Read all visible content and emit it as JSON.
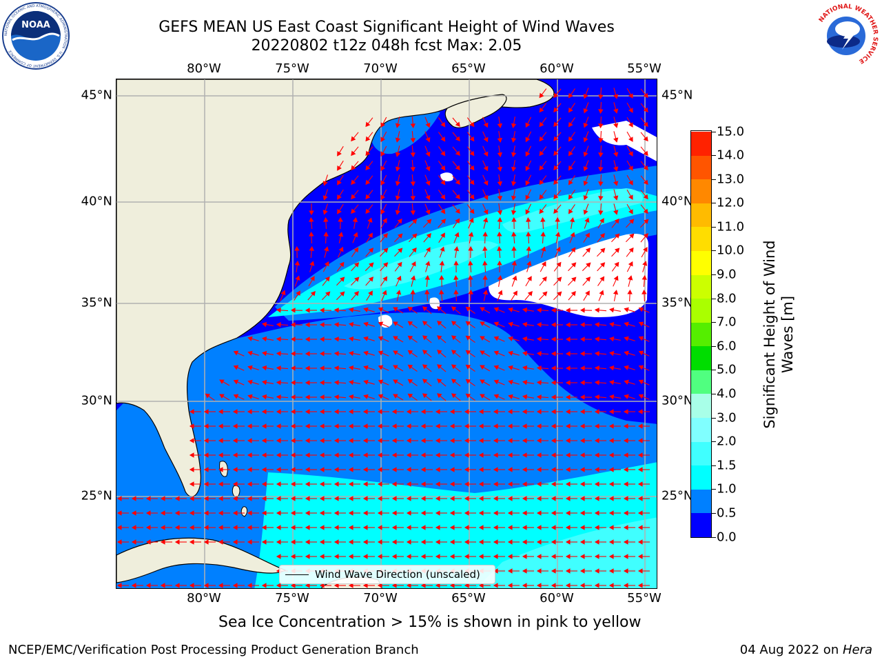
{
  "title": {
    "line1": "GEFS MEAN US East Coast Significant Height of Wind Waves",
    "line2": "20220802 t12z 048h fcst    Max: 2.05"
  },
  "map": {
    "lon_ticks": [
      "80°W",
      "75°W",
      "70°W",
      "65°W",
      "60°W",
      "55°W"
    ],
    "lat_ticks": [
      "45°N",
      "40°N",
      "35°N",
      "30°N",
      "25°N"
    ],
    "lon_range": [
      -85,
      -54.5
    ],
    "lat_range": [
      20.5,
      46
    ],
    "land_color": "#efeedc",
    "grid_color": "#b0b0b0",
    "arrow_color": "#ff0000",
    "legend_label": "Wind Wave Direction (unscaled)"
  },
  "colorbar": {
    "label": "Significant Height of Wind Waves [m]",
    "ticks": [
      "0.0",
      "0.5",
      "1.0",
      "1.5",
      "2.0",
      "3.0",
      "4.0",
      "5.0",
      "6.0",
      "7.0",
      "8.0",
      "9.0",
      "10.0",
      "11.0",
      "12.0",
      "13.0",
      "14.0",
      "15.0"
    ],
    "colors": [
      "#0000ff",
      "#0080ff",
      "#00ffff",
      "#40ffff",
      "#80ffff",
      "#a8ffe8",
      "#50ff80",
      "#00dd00",
      "#55ee00",
      "#aaff00",
      "#ccff00",
      "#ffff00",
      "#ffdd00",
      "#ffbb00",
      "#ff8800",
      "#ff5500",
      "#ff2200"
    ]
  },
  "ice_note": "Sea Ice Concentration > 15% is shown in pink to yellow",
  "footer": {
    "left": "NCEP/EMC/Verification Post Processing Product Generation Branch",
    "date": "04 Aug 2022 on ",
    "system": "Hera"
  },
  "logos": {
    "noaa": "NOAA",
    "noaa_ring": "NATIONAL OCEANIC AND ATMOSPHERIC ADMINISTRATION · U.S. DEPARTMENT OF COMMERCE",
    "nws_ring": "NATIONAL WEATHER SERVICE"
  }
}
